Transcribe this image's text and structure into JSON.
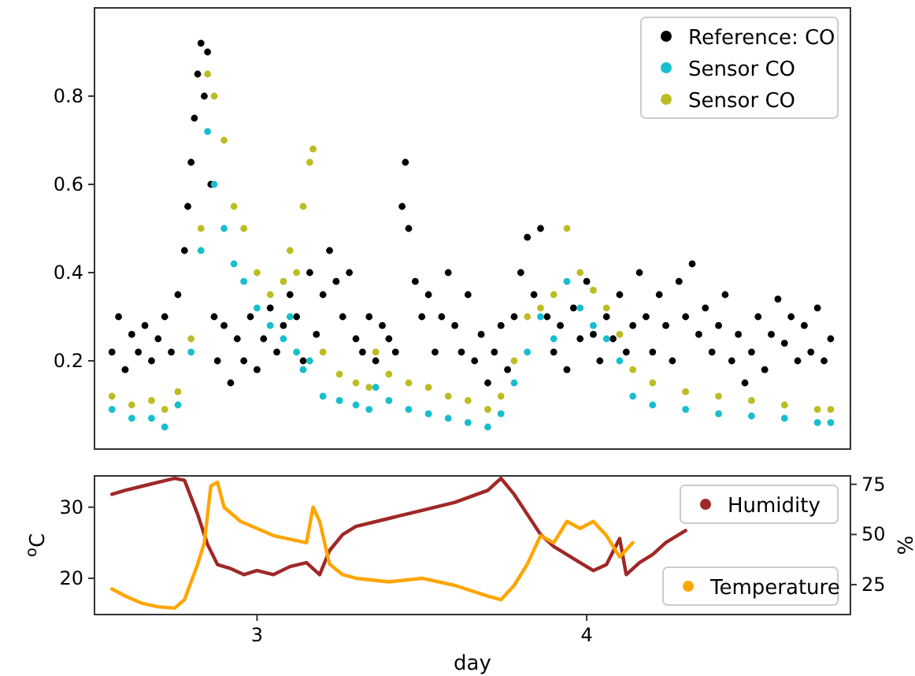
{
  "chart_data": [
    {
      "type": "scatter",
      "legend": "top right",
      "tick_labels": "y",
      "marker": "circle",
      "xlim": [
        2.507,
        4.8
      ],
      "ylim": [
        0,
        1
      ],
      "yticks": [
        0.2,
        0.4,
        0.6,
        0.8
      ],
      "series": [
        {
          "name": "Reference: CO",
          "color": "#000000",
          "x": [
            2.56,
            2.58,
            2.6,
            2.62,
            2.64,
            2.66,
            2.68,
            2.7,
            2.72,
            2.74,
            2.76,
            2.78,
            2.79,
            2.8,
            2.81,
            2.82,
            2.83,
            2.84,
            2.85,
            2.86,
            2.87,
            2.88,
            2.9,
            2.92,
            2.94,
            2.96,
            2.98,
            3.0,
            3.02,
            3.04,
            3.06,
            3.08,
            3.1,
            3.12,
            3.14,
            3.16,
            3.18,
            3.2,
            3.22,
            3.24,
            3.26,
            3.28,
            3.3,
            3.32,
            3.34,
            3.36,
            3.38,
            3.4,
            3.42,
            3.44,
            3.45,
            3.46,
            3.48,
            3.5,
            3.52,
            3.54,
            3.56,
            3.58,
            3.6,
            3.62,
            3.64,
            3.66,
            3.68,
            3.7,
            3.72,
            3.74,
            3.76,
            3.78,
            3.8,
            3.82,
            3.84,
            3.86,
            3.88,
            3.9,
            3.92,
            3.94,
            3.96,
            3.98,
            4.0,
            4.02,
            4.04,
            4.06,
            4.08,
            4.1,
            4.12,
            4.14,
            4.16,
            4.18,
            4.2,
            4.22,
            4.24,
            4.26,
            4.28,
            4.3,
            4.32,
            4.34,
            4.36,
            4.38,
            4.4,
            4.42,
            4.44,
            4.46,
            4.48,
            4.5,
            4.52,
            4.54,
            4.56,
            4.58,
            4.6,
            4.62,
            4.64,
            4.66,
            4.68,
            4.7,
            4.72,
            4.74
          ],
          "values": [
            0.22,
            0.3,
            0.18,
            0.26,
            0.22,
            0.28,
            0.2,
            0.25,
            0.3,
            0.22,
            0.35,
            0.45,
            0.55,
            0.65,
            0.75,
            0.85,
            0.92,
            0.8,
            0.9,
            0.6,
            0.3,
            0.2,
            0.28,
            0.15,
            0.25,
            0.2,
            0.3,
            0.18,
            0.25,
            0.32,
            0.22,
            0.28,
            0.35,
            0.3,
            0.2,
            0.4,
            0.26,
            0.35,
            0.45,
            0.38,
            0.3,
            0.4,
            0.25,
            0.22,
            0.3,
            0.2,
            0.28,
            0.25,
            0.22,
            0.55,
            0.65,
            0.5,
            0.38,
            0.3,
            0.35,
            0.22,
            0.3,
            0.4,
            0.28,
            0.22,
            0.35,
            0.2,
            0.26,
            0.15,
            0.22,
            0.28,
            0.18,
            0.3,
            0.4,
            0.48,
            0.35,
            0.5,
            0.3,
            0.22,
            0.28,
            0.18,
            0.32,
            0.25,
            0.38,
            0.26,
            0.2,
            0.3,
            0.25,
            0.35,
            0.22,
            0.28,
            0.4,
            0.3,
            0.22,
            0.35,
            0.28,
            0.2,
            0.38,
            0.3,
            0.42,
            0.26,
            0.32,
            0.22,
            0.28,
            0.35,
            0.2,
            0.26,
            0.15,
            0.22,
            0.3,
            0.18,
            0.26,
            0.34,
            0.24,
            0.3,
            0.2,
            0.28,
            0.22,
            0.32,
            0.2,
            0.25
          ]
        },
        {
          "name": "Sensor CO",
          "color": "#17becf",
          "x": [
            2.56,
            2.62,
            2.68,
            2.72,
            2.76,
            2.8,
            2.83,
            2.85,
            2.87,
            2.9,
            2.93,
            2.96,
            3.0,
            3.04,
            3.08,
            3.1,
            3.12,
            3.14,
            3.16,
            3.2,
            3.25,
            3.3,
            3.34,
            3.36,
            3.4,
            3.46,
            3.52,
            3.58,
            3.64,
            3.7,
            3.74,
            3.78,
            3.82,
            3.86,
            3.9,
            3.94,
            3.98,
            4.02,
            4.06,
            4.1,
            4.14,
            4.2,
            4.3,
            4.4,
            4.5,
            4.6,
            4.7,
            4.74
          ],
          "values": [
            0.09,
            0.07,
            0.07,
            0.05,
            0.1,
            0.22,
            0.45,
            0.72,
            0.6,
            0.5,
            0.42,
            0.38,
            0.32,
            0.28,
            0.25,
            0.3,
            0.22,
            0.18,
            0.2,
            0.12,
            0.11,
            0.1,
            0.09,
            0.14,
            0.11,
            0.09,
            0.08,
            0.07,
            0.06,
            0.05,
            0.08,
            0.15,
            0.22,
            0.3,
            0.25,
            0.38,
            0.32,
            0.28,
            0.25,
            0.2,
            0.12,
            0.1,
            0.09,
            0.08,
            0.075,
            0.07,
            0.06,
            0.06
          ]
        },
        {
          "name": "Sensor CO",
          "color": "#bcbd22",
          "x": [
            2.56,
            2.62,
            2.68,
            2.72,
            2.76,
            2.8,
            2.83,
            2.85,
            2.87,
            2.9,
            2.93,
            2.96,
            3.0,
            3.04,
            3.08,
            3.1,
            3.12,
            3.14,
            3.16,
            3.17,
            3.2,
            3.25,
            3.3,
            3.34,
            3.36,
            3.4,
            3.46,
            3.52,
            3.58,
            3.64,
            3.7,
            3.74,
            3.78,
            3.82,
            3.86,
            3.9,
            3.94,
            3.98,
            4.02,
            4.06,
            4.1,
            4.14,
            4.2,
            4.3,
            4.4,
            4.5,
            4.6,
            4.7,
            4.74
          ],
          "values": [
            0.12,
            0.1,
            0.11,
            0.09,
            0.13,
            0.25,
            0.5,
            0.85,
            0.8,
            0.7,
            0.55,
            0.5,
            0.4,
            0.35,
            0.38,
            0.45,
            0.4,
            0.55,
            0.65,
            0.68,
            0.22,
            0.17,
            0.15,
            0.14,
            0.22,
            0.17,
            0.15,
            0.14,
            0.12,
            0.11,
            0.09,
            0.12,
            0.2,
            0.3,
            0.32,
            0.35,
            0.5,
            0.4,
            0.36,
            0.32,
            0.26,
            0.18,
            0.15,
            0.13,
            0.12,
            0.11,
            0.1,
            0.09,
            0.09
          ]
        }
      ]
    },
    {
      "type": "line",
      "legend": "right",
      "xlabel": "day",
      "ylabel": "$^{o}$C",
      "y2label": "%",
      "xlim": [
        2.507,
        4.8
      ],
      "xticks": [
        3,
        4
      ],
      "ylim": [
        14.9,
        34.4
      ],
      "yticks": [
        20,
        30
      ],
      "y2lim": [
        10.1,
        79.2
      ],
      "y2ticks": [
        25,
        50,
        75
      ],
      "series": [
        {
          "name": "Humidity",
          "color": "#a02828",
          "axis": "y2",
          "x": [
            2.56,
            2.6,
            2.65,
            2.7,
            2.75,
            2.78,
            2.82,
            2.85,
            2.88,
            2.92,
            2.96,
            3.0,
            3.05,
            3.1,
            3.15,
            3.19,
            3.22,
            3.26,
            3.3,
            3.4,
            3.5,
            3.6,
            3.7,
            3.74,
            3.78,
            3.82,
            3.86,
            3.9,
            3.94,
            3.98,
            4.02,
            4.06,
            4.1,
            4.12,
            4.16,
            4.2,
            4.24,
            4.3
          ],
          "values": [
            70,
            72,
            74,
            76,
            78,
            77,
            60,
            45,
            35,
            33,
            30,
            32,
            30,
            34,
            36,
            30,
            42,
            50,
            54,
            58,
            62,
            66,
            72,
            78,
            70,
            60,
            50,
            44,
            40,
            36,
            32,
            35,
            48,
            30,
            36,
            40,
            46,
            52
          ]
        },
        {
          "name": "Temperature",
          "color": "#ffa500",
          "x": [
            2.56,
            2.6,
            2.65,
            2.7,
            2.75,
            2.78,
            2.82,
            2.84,
            2.86,
            2.88,
            2.9,
            2.95,
            3.0,
            3.05,
            3.1,
            3.15,
            3.17,
            3.19,
            3.22,
            3.26,
            3.3,
            3.4,
            3.5,
            3.6,
            3.7,
            3.74,
            3.78,
            3.82,
            3.86,
            3.9,
            3.94,
            3.98,
            4.02,
            4.06,
            4.1,
            4.14
          ],
          "values": [
            18.5,
            17.5,
            16.5,
            16,
            15.8,
            17,
            22,
            25,
            33,
            33.5,
            30,
            28,
            27,
            26,
            25.5,
            25,
            30,
            28,
            22,
            20.5,
            20,
            19.5,
            20,
            19,
            17.5,
            17,
            19,
            22,
            26,
            25,
            28,
            27,
            28,
            26,
            23,
            25
          ]
        }
      ]
    }
  ]
}
